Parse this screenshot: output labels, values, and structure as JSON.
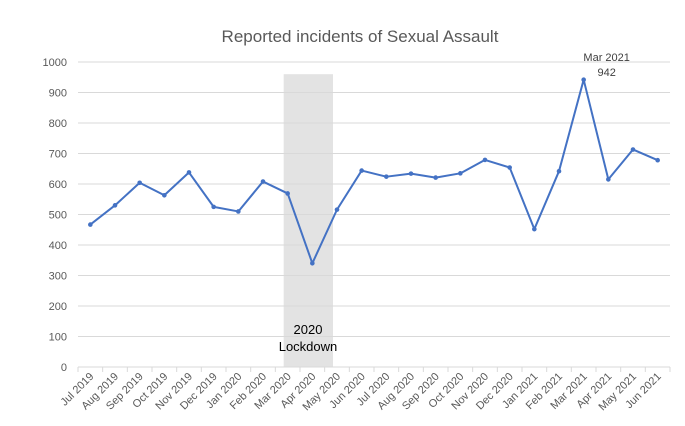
{
  "chart_data": {
    "type": "line",
    "title": "Reported incidents of Sexual Assault",
    "xlabel": "",
    "ylabel": "",
    "ylim": [
      0,
      1000
    ],
    "yticks": [
      0,
      100,
      200,
      300,
      400,
      500,
      600,
      700,
      800,
      900,
      1000
    ],
    "grid": true,
    "categories": [
      "Jul 2019",
      "Aug 2019",
      "Sep 2019",
      "Oct 2019",
      "Nov 2019",
      "Dec 2019",
      "Jan 2020",
      "Feb 2020",
      "Mar 2020",
      "Apr 2020",
      "May 2020",
      "Jun 2020",
      "Jul 2020",
      "Aug 2020",
      "Sep 2020",
      "Oct 2020",
      "Nov 2020",
      "Dec 2020",
      "Jan 2021",
      "Feb 2021",
      "Mar 2021",
      "Apr 2021",
      "May 2021",
      "Jun 2021"
    ],
    "series": [
      {
        "name": "Reported incidents",
        "color": "#4472C4",
        "values": [
          467,
          530,
          604,
          563,
          638,
          525,
          510,
          608,
          569,
          340,
          516,
          644,
          624,
          634,
          621,
          635,
          679,
          654,
          452,
          642,
          942,
          615,
          713,
          678
        ]
      }
    ],
    "shaded_region": {
      "from": "Mar 2020",
      "to": "May 2020",
      "top": 960,
      "color": "#E3E3E3",
      "label_line1": "2020",
      "label_line2": "Lockdown"
    },
    "annotation": {
      "category": "Mar 2021",
      "line1": "Mar 2021",
      "line2": "942"
    }
  }
}
